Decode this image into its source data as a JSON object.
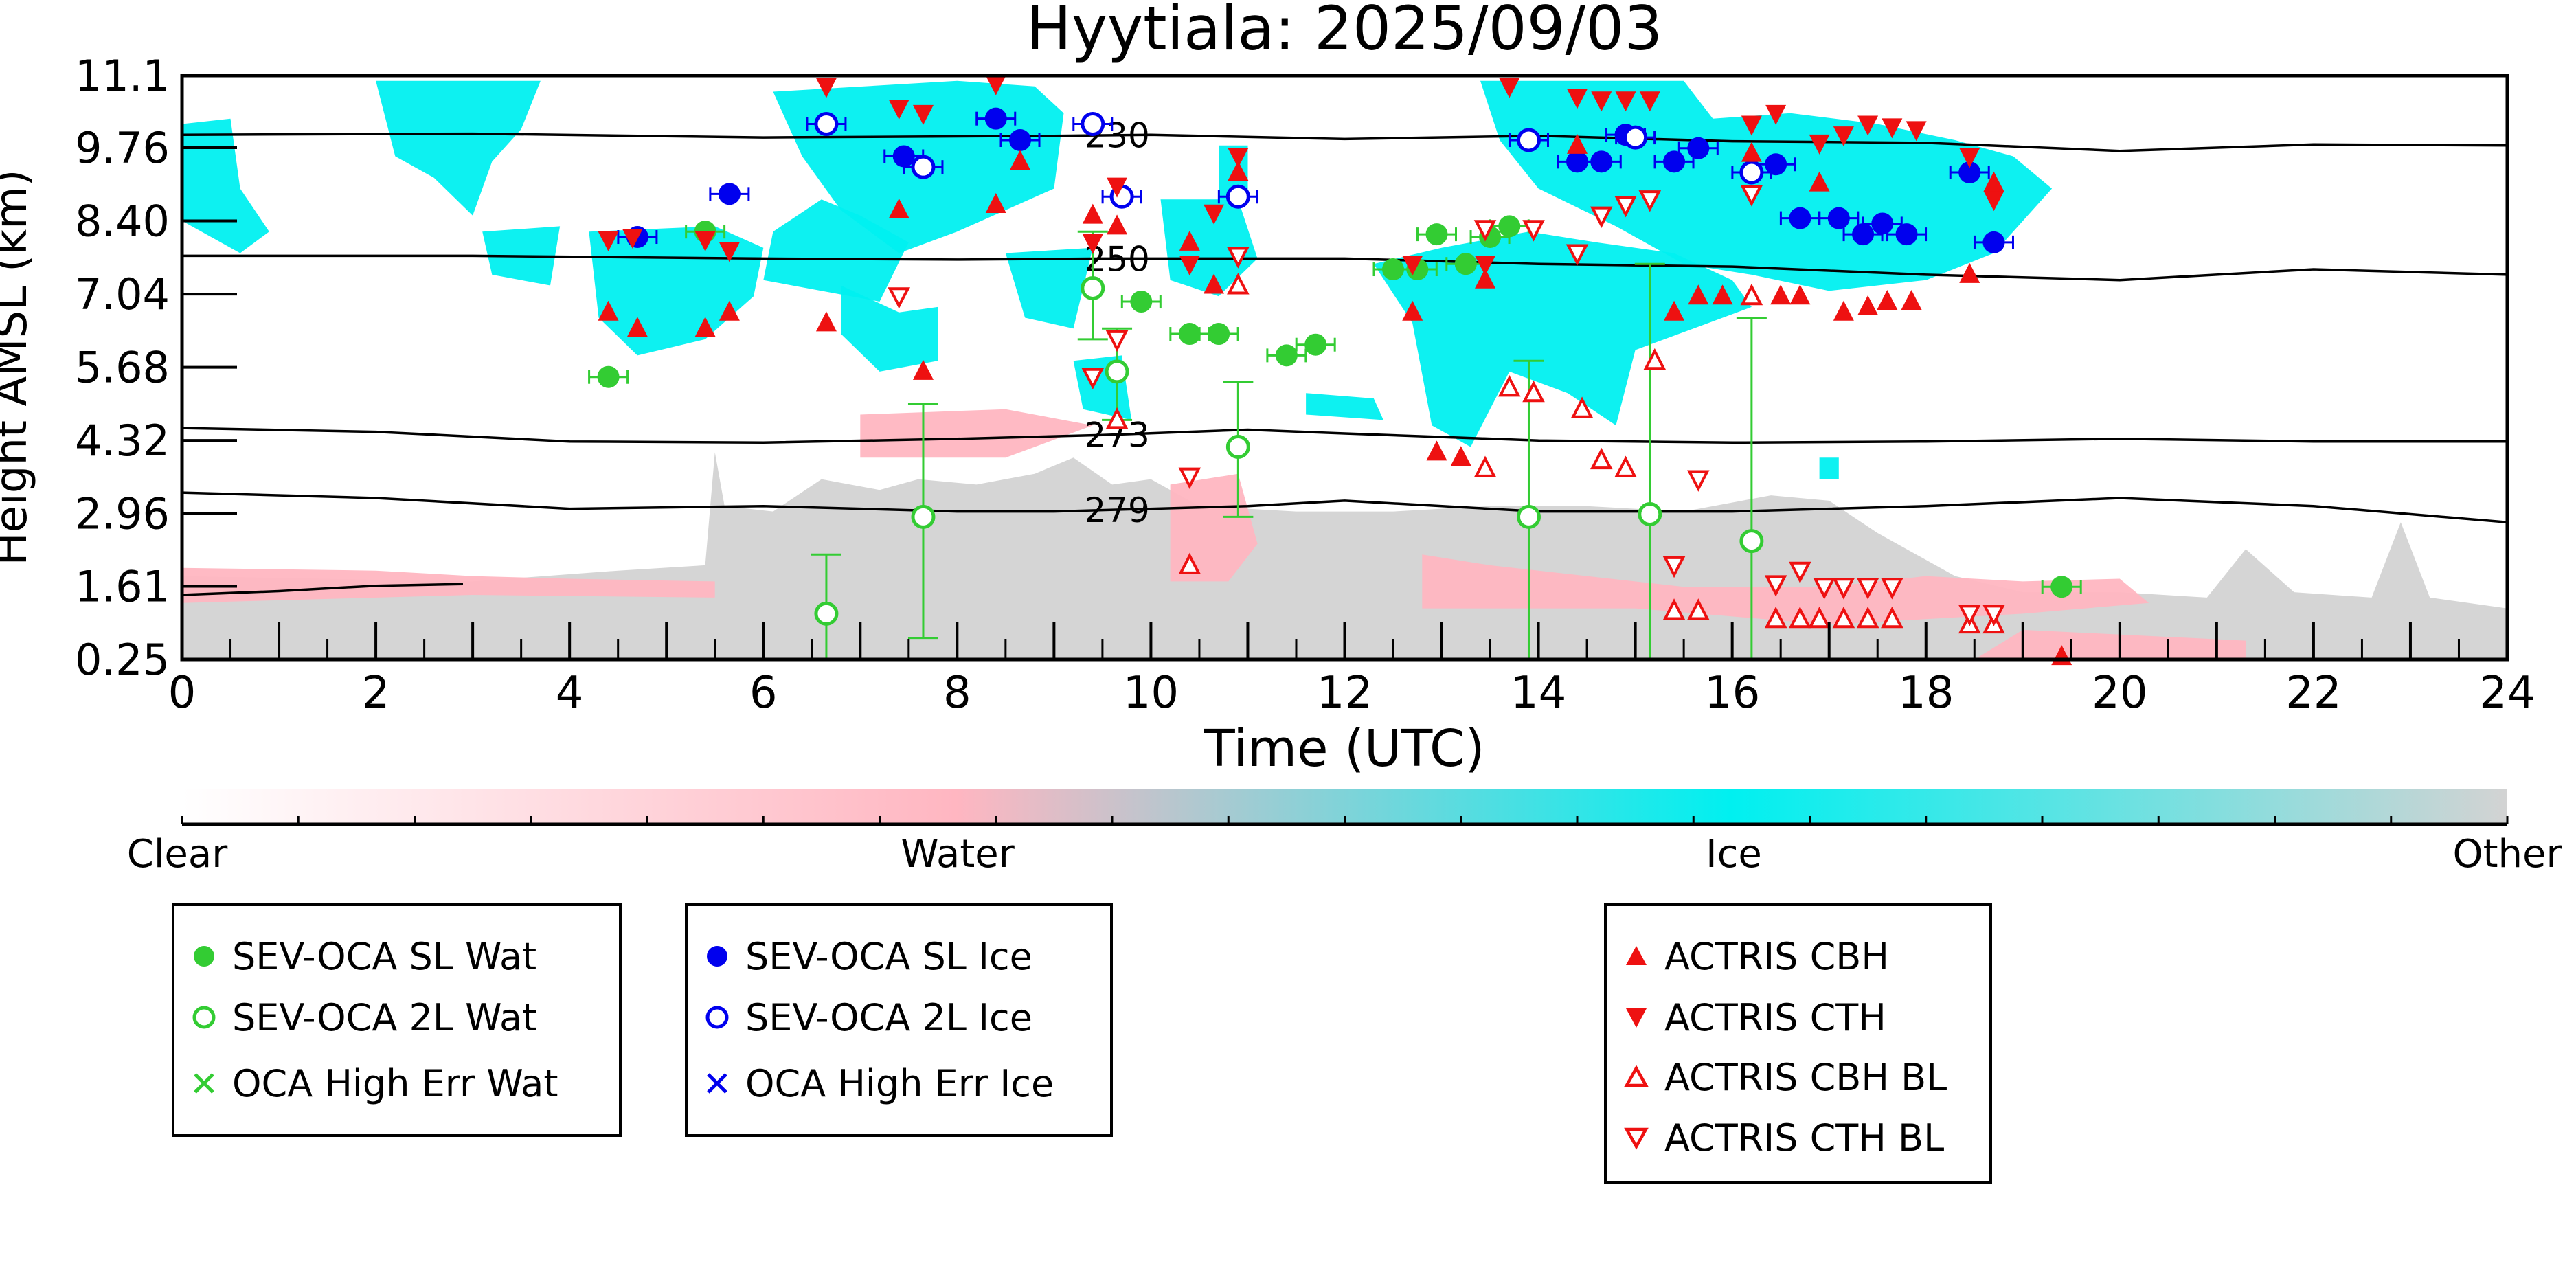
{
  "chart_data": {
    "type": "scatter",
    "title": "Hyytiala: 2025/09/03",
    "xlabel": "Time (UTC)",
    "ylabel": "Height AMSL (km)",
    "xlim": [
      0,
      24
    ],
    "ylim": [
      0.25,
      11.1
    ],
    "xticks": [
      0,
      2,
      4,
      6,
      8,
      10,
      12,
      14,
      16,
      18,
      20,
      22,
      24
    ],
    "yticks": [
      "0.25",
      "1.61",
      "2.96",
      "4.32",
      "5.68",
      "7.04",
      "8.40",
      "9.76",
      "11.1"
    ],
    "background": "cloud phase classification (Clear / Water / Ice / Other)",
    "colorbar": {
      "labels": [
        "Clear",
        "Water",
        "Ice",
        "Other"
      ],
      "colors": [
        "#ffffff",
        "#ffb6c1",
        "#00f0f0",
        "#d3d3d3"
      ]
    },
    "contours": [
      {
        "label": "230",
        "points": [
          [
            0,
            10.0
          ],
          [
            3,
            10.02
          ],
          [
            6,
            9.95
          ],
          [
            9,
            9.98
          ],
          [
            10,
            10.0
          ],
          [
            12,
            9.92
          ],
          [
            14,
            9.98
          ],
          [
            16,
            9.88
          ],
          [
            18,
            9.85
          ],
          [
            20,
            9.7
          ],
          [
            22,
            9.82
          ],
          [
            24,
            9.8
          ]
        ]
      },
      {
        "label": "250",
        "points": [
          [
            0,
            7.75
          ],
          [
            3,
            7.75
          ],
          [
            6,
            7.7
          ],
          [
            8,
            7.68
          ],
          [
            9.5,
            7.7
          ],
          [
            12,
            7.7
          ],
          [
            14,
            7.6
          ],
          [
            16,
            7.55
          ],
          [
            18,
            7.4
          ],
          [
            20,
            7.3
          ],
          [
            22,
            7.5
          ],
          [
            24,
            7.4
          ]
        ]
      },
      {
        "label": "273",
        "points": [
          [
            0,
            4.55
          ],
          [
            2,
            4.48
          ],
          [
            4,
            4.3
          ],
          [
            6,
            4.28
          ],
          [
            8,
            4.35
          ],
          [
            9.5,
            4.42
          ],
          [
            11,
            4.52
          ],
          [
            12,
            4.45
          ],
          [
            14,
            4.32
          ],
          [
            16,
            4.28
          ],
          [
            18,
            4.3
          ],
          [
            20,
            4.35
          ],
          [
            22,
            4.3
          ],
          [
            24,
            4.3
          ]
        ]
      },
      {
        "label": "279",
        "points": [
          [
            0,
            3.35
          ],
          [
            2,
            3.25
          ],
          [
            4,
            3.05
          ],
          [
            6,
            3.1
          ],
          [
            8,
            3.0
          ],
          [
            9,
            3.0
          ],
          [
            11,
            3.1
          ],
          [
            12,
            3.2
          ],
          [
            14,
            3.0
          ],
          [
            16,
            3.0
          ],
          [
            18,
            3.1
          ],
          [
            20,
            3.25
          ],
          [
            22,
            3.1
          ],
          [
            24,
            2.8
          ]
        ]
      },
      {
        "label": "",
        "points": [
          [
            0,
            1.45
          ],
          [
            1,
            1.52
          ],
          [
            2,
            1.62
          ],
          [
            2.9,
            1.65
          ]
        ]
      }
    ],
    "legends": [
      {
        "entries": [
          {
            "label": "SEV-OCA SL Wat",
            "marker": "filled-circle",
            "color": "#33cc33"
          },
          {
            "label": "SEV-OCA 2L Wat",
            "marker": "open-circle",
            "color": "#33cc33"
          },
          {
            "label": "OCA High Err Wat",
            "marker": "x",
            "color": "#33cc33"
          }
        ]
      },
      {
        "entries": [
          {
            "label": "SEV-OCA SL Ice",
            "marker": "filled-circle",
            "color": "#0000ee"
          },
          {
            "label": "SEV-OCA 2L Ice",
            "marker": "open-circle",
            "color": "#0000ee"
          },
          {
            "label": "OCA High Err Ice",
            "marker": "x",
            "color": "#0000ee"
          }
        ]
      },
      {
        "entries": [
          {
            "label": "ACTRIS CBH",
            "marker": "triangle-up",
            "color": "#ee1111"
          },
          {
            "label": "ACTRIS CTH",
            "marker": "triangle-down",
            "color": "#ee1111"
          },
          {
            "label": "ACTRIS CBH BL",
            "marker": "open-triangle-up",
            "color": "#ee1111"
          },
          {
            "label": "ACTRIS CTH BL",
            "marker": "open-triangle-down",
            "color": "#ee1111"
          }
        ]
      }
    ],
    "series": [
      {
        "name": "SEV-OCA SL Wat",
        "points": [
          [
            4.4,
            5.5
          ],
          [
            5.4,
            8.2
          ],
          [
            9.9,
            6.9
          ],
          [
            10.4,
            6.3
          ],
          [
            10.7,
            6.3
          ],
          [
            11.4,
            5.9
          ],
          [
            11.7,
            6.1
          ],
          [
            12.5,
            7.5
          ],
          [
            12.75,
            7.5
          ],
          [
            12.95,
            8.15
          ],
          [
            13.25,
            7.6
          ],
          [
            13.5,
            8.1
          ],
          [
            13.7,
            8.3
          ],
          [
            19.4,
            1.6
          ]
        ]
      },
      {
        "name": "SEV-OCA 2L Wat",
        "points": [
          [
            6.65,
            1.1
          ],
          [
            7.65,
            2.9
          ],
          [
            9.4,
            7.15
          ],
          [
            9.65,
            5.6
          ],
          [
            10.9,
            4.2
          ],
          [
            13.9,
            2.9
          ],
          [
            15.15,
            2.95
          ],
          [
            16.2,
            2.45
          ]
        ],
        "error_bars": [
          [
            2.2,
            0.25
          ],
          [
            5.0,
            0.65
          ],
          [
            8.2,
            6.2
          ],
          [
            6.4,
            4.7
          ],
          [
            5.4,
            2.9
          ],
          [
            5.8,
            0.25
          ],
          [
            7.6,
            0.25
          ],
          [
            6.6,
            0.25
          ]
        ]
      },
      {
        "name": "SEV-OCA SL Ice",
        "points": [
          [
            4.7,
            8.1
          ],
          [
            5.65,
            8.9
          ],
          [
            7.45,
            9.6
          ],
          [
            8.4,
            10.3
          ],
          [
            8.65,
            9.9
          ],
          [
            14.4,
            9.5
          ],
          [
            14.65,
            9.5
          ],
          [
            14.9,
            10.0
          ],
          [
            15.4,
            9.5
          ],
          [
            15.65,
            9.75
          ],
          [
            16.45,
            9.45
          ],
          [
            16.7,
            8.45
          ],
          [
            17.1,
            8.45
          ],
          [
            17.35,
            8.15
          ],
          [
            17.55,
            8.35
          ],
          [
            17.8,
            8.15
          ],
          [
            18.45,
            9.3
          ],
          [
            18.7,
            8.0
          ]
        ]
      },
      {
        "name": "SEV-OCA 2L Ice",
        "points": [
          [
            6.65,
            10.2
          ],
          [
            7.65,
            9.4
          ],
          [
            9.4,
            10.2
          ],
          [
            9.7,
            8.85
          ],
          [
            10.9,
            8.85
          ],
          [
            13.9,
            9.9
          ],
          [
            15.0,
            9.95
          ],
          [
            16.2,
            9.3
          ]
        ]
      },
      {
        "name": "OCA High Err Wat",
        "points": []
      },
      {
        "name": "OCA High Err Ice",
        "points": []
      },
      {
        "name": "ACTRIS CBH",
        "points": [
          [
            4.4,
            6.7
          ],
          [
            4.7,
            6.4
          ],
          [
            5.4,
            6.4
          ],
          [
            5.65,
            6.7
          ],
          [
            6.65,
            6.5
          ],
          [
            7.4,
            8.6
          ],
          [
            7.65,
            5.6
          ],
          [
            8.4,
            8.7
          ],
          [
            8.65,
            9.5
          ],
          [
            9.4,
            8.5
          ],
          [
            9.65,
            8.3
          ],
          [
            10.4,
            8.0
          ],
          [
            10.65,
            7.2
          ],
          [
            10.9,
            9.3
          ],
          [
            12.7,
            6.7
          ],
          [
            12.95,
            4.1
          ],
          [
            13.2,
            4.0
          ],
          [
            13.45,
            7.3
          ],
          [
            14.4,
            9.8
          ],
          [
            15.4,
            6.7
          ],
          [
            15.65,
            7.0
          ],
          [
            15.9,
            7.0
          ],
          [
            16.2,
            9.65
          ],
          [
            16.5,
            7.0
          ],
          [
            16.7,
            7.0
          ],
          [
            16.9,
            9.1
          ],
          [
            17.15,
            6.7
          ],
          [
            17.4,
            6.8
          ],
          [
            17.6,
            6.9
          ],
          [
            17.85,
            6.9
          ],
          [
            18.45,
            7.4
          ],
          [
            18.7,
            9.1
          ],
          [
            19.4,
            0.3
          ]
        ]
      },
      {
        "name": "ACTRIS CTH",
        "points": [
          [
            4.4,
            8.05
          ],
          [
            4.65,
            8.1
          ],
          [
            5.4,
            8.05
          ],
          [
            5.65,
            7.85
          ],
          [
            6.65,
            10.9
          ],
          [
            7.4,
            10.5
          ],
          [
            7.65,
            10.4
          ],
          [
            8.4,
            10.95
          ],
          [
            9.4,
            8.0
          ],
          [
            9.65,
            9.05
          ],
          [
            10.4,
            7.6
          ],
          [
            10.65,
            8.55
          ],
          [
            10.9,
            9.6
          ],
          [
            12.7,
            7.6
          ],
          [
            13.45,
            7.6
          ],
          [
            13.7,
            10.9
          ],
          [
            14.4,
            10.7
          ],
          [
            14.65,
            10.65
          ],
          [
            14.9,
            10.65
          ],
          [
            15.15,
            10.65
          ],
          [
            16.2,
            10.2
          ],
          [
            16.45,
            10.4
          ],
          [
            16.9,
            9.85
          ],
          [
            17.15,
            10.0
          ],
          [
            17.4,
            10.2
          ],
          [
            17.65,
            10.15
          ],
          [
            17.9,
            10.1
          ],
          [
            18.45,
            9.6
          ],
          [
            18.7,
            8.8
          ]
        ]
      },
      {
        "name": "ACTRIS CBH BL",
        "points": [
          [
            9.65,
            4.7
          ],
          [
            10.4,
            2.0
          ],
          [
            10.9,
            7.2
          ],
          [
            13.45,
            3.8
          ],
          [
            13.7,
            5.3
          ],
          [
            13.95,
            5.2
          ],
          [
            14.45,
            4.9
          ],
          [
            14.65,
            3.95
          ],
          [
            14.9,
            3.8
          ],
          [
            15.2,
            5.8
          ],
          [
            15.4,
            1.15
          ],
          [
            15.65,
            1.15
          ],
          [
            16.2,
            7.0
          ],
          [
            16.45,
            1.0
          ],
          [
            16.7,
            1.0
          ],
          [
            16.9,
            1.0
          ],
          [
            17.15,
            1.0
          ],
          [
            17.4,
            1.0
          ],
          [
            17.65,
            1.0
          ],
          [
            18.45,
            0.9
          ],
          [
            18.7,
            0.9
          ]
        ]
      },
      {
        "name": "ACTRIS CTH BL",
        "points": [
          [
            7.4,
            7.0
          ],
          [
            9.4,
            5.5
          ],
          [
            9.65,
            6.2
          ],
          [
            10.4,
            3.65
          ],
          [
            10.9,
            7.75
          ],
          [
            13.45,
            8.25
          ],
          [
            13.95,
            8.25
          ],
          [
            14.4,
            7.8
          ],
          [
            14.65,
            8.5
          ],
          [
            14.9,
            8.7
          ],
          [
            15.15,
            8.8
          ],
          [
            15.4,
            2.0
          ],
          [
            15.65,
            3.6
          ],
          [
            16.2,
            8.9
          ],
          [
            16.45,
            1.65
          ],
          [
            16.7,
            1.9
          ],
          [
            16.95,
            1.6
          ],
          [
            17.15,
            1.6
          ],
          [
            17.4,
            1.6
          ],
          [
            17.65,
            1.6
          ],
          [
            18.45,
            1.1
          ],
          [
            18.7,
            1.1
          ]
        ]
      }
    ],
    "grid": false,
    "legend_position": "below"
  }
}
